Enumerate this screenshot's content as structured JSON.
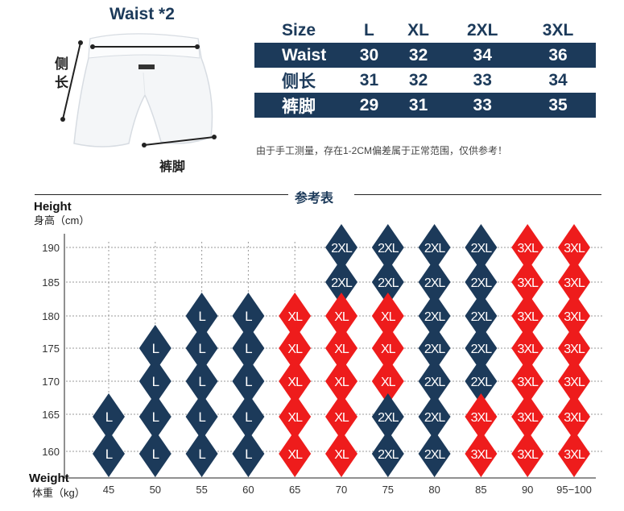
{
  "measure_labels": {
    "waist": "Waist *2",
    "side_length": "侧长",
    "hem": "裤脚"
  },
  "size_table": {
    "headers": [
      "Size",
      "L",
      "XL",
      "2XL",
      "3XL"
    ],
    "rows": [
      {
        "label": "Waist",
        "values": [
          "30",
          "32",
          "34",
          "36"
        ]
      },
      {
        "label": "侧长",
        "values": [
          "31",
          "32",
          "33",
          "34"
        ]
      },
      {
        "label": "裤脚",
        "values": [
          "29",
          "31",
          "33",
          "35"
        ]
      }
    ]
  },
  "note": "由于手工测量，存在1-2CM偏差属于正常范围，仅供参考！",
  "reference_title": "参考表",
  "colors": {
    "navy": "#1c3a5a",
    "red": "#ee1c1c"
  },
  "chart_data": {
    "type": "heatmap",
    "ylabel": "Height",
    "ylabel_sub": "身高（cm）",
    "xlabel": "Weight",
    "xlabel_sub": "体重（kg）",
    "x": [
      "45",
      "50",
      "55",
      "60",
      "65",
      "70",
      "75",
      "80",
      "85",
      "90",
      "95-100"
    ],
    "x_tick_labels": [
      "45",
      "50",
      "55",
      "60",
      "65",
      "70",
      "75",
      "80",
      "85",
      "90",
      "95−100"
    ],
    "y": [
      "190",
      "185",
      "180",
      "175",
      "170",
      "165",
      "160"
    ],
    "grid": true,
    "size_colors": {
      "L": "#1c3a5a",
      "XL": "#ee1c1c",
      "2XL": "#1c3a5a",
      "3XL": "#ee1c1c"
    },
    "cells": [
      [
        "",
        "",
        "",
        "",
        "",
        "2XL",
        "2XL",
        "2XL",
        "2XL",
        "3XL",
        "3XL"
      ],
      [
        "",
        "",
        "",
        "",
        "",
        "2XL",
        "2XL",
        "2XL",
        "2XL",
        "3XL",
        "3XL"
      ],
      [
        "",
        "",
        "L",
        "L",
        "XL",
        "XL",
        "XL",
        "2XL",
        "2XL",
        "3XL",
        "3XL"
      ],
      [
        "",
        "L",
        "L",
        "L",
        "XL",
        "XL",
        "XL",
        "2XL",
        "2XL",
        "3XL",
        "3XL"
      ],
      [
        "",
        "L",
        "L",
        "L",
        "XL",
        "XL",
        "XL",
        "2XL",
        "2XL",
        "3XL",
        "3XL"
      ],
      [
        "L",
        "L",
        "L",
        "L",
        "XL",
        "XL",
        "2XL",
        "2XL",
        "3XL",
        "3XL",
        "3XL"
      ],
      [
        "L",
        "L",
        "L",
        "L",
        "XL",
        "XL",
        "2XL",
        "2XL",
        "3XL",
        "3XL",
        "3XL"
      ]
    ]
  }
}
